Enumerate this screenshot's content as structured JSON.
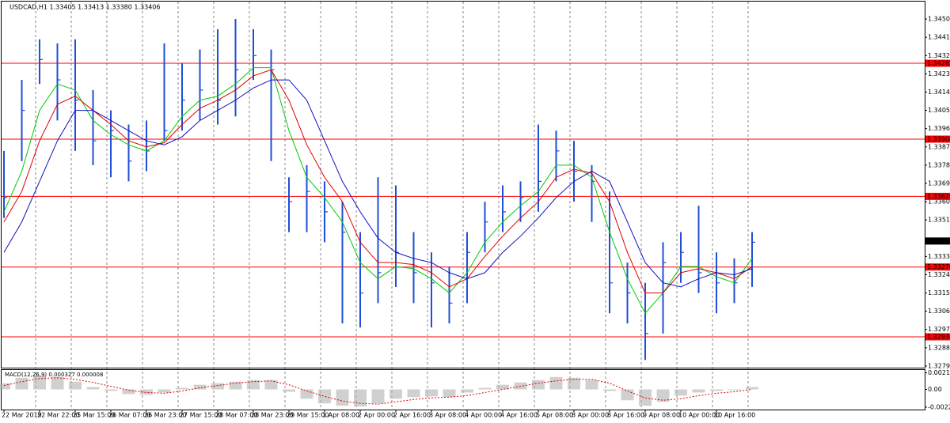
{
  "chart_data": {
    "type": "ohlc",
    "title": "USDCAD,H1  1.33405 1.33413 1.33380 1.33406",
    "categories": [
      "22 Mar 2019",
      null,
      "22 Mar 22:00",
      null,
      "25 Mar 15:00",
      null,
      "26 Mar 07:00",
      null,
      "26 Mar 23:00",
      null,
      "27 Mar 15:00",
      null,
      "28 Mar 07:00",
      null,
      "28 Mar 23:00",
      null,
      "29 Mar 15:00",
      null,
      "1 Apr 08:00",
      null,
      "2 Apr 00:00",
      null,
      "2 Apr 16:00",
      null,
      "3 Apr 08:00",
      null,
      "4 Apr 00:00",
      null,
      "4 Apr 16:00",
      null,
      "5 Apr 08:00",
      null,
      "8 Apr 00:00",
      null,
      "8 Apr 16:00",
      null,
      "9 Apr 08:00",
      null,
      "10 Apr 00:00",
      null,
      "10 Apr 16:00",
      null,
      null
    ],
    "high": [
      1.3385,
      1.342,
      1.344,
      1.3438,
      1.344,
      1.3415,
      1.3405,
      1.3398,
      1.34,
      1.3438,
      1.3428,
      1.3435,
      1.3445,
      1.345,
      1.3445,
      1.3435,
      1.3372,
      1.3378,
      1.337,
      1.336,
      1.3345,
      1.3372,
      1.3368,
      1.3345,
      1.3335,
      1.3328,
      1.3345,
      1.336,
      1.3368,
      1.337,
      1.3398,
      1.3395,
      1.339,
      1.3378,
      1.3365,
      1.333,
      1.332,
      1.334,
      1.3345,
      1.3358,
      1.3335,
      1.3332,
      1.3345
    ],
    "low": [
      1.3352,
      1.338,
      1.3418,
      1.34,
      1.3385,
      1.3378,
      1.3372,
      1.337,
      1.3375,
      1.339,
      1.3395,
      1.34,
      1.3398,
      1.3402,
      1.342,
      1.338,
      1.3345,
      1.3345,
      1.334,
      1.33,
      1.3298,
      1.331,
      1.3318,
      1.331,
      1.3298,
      1.33,
      1.331,
      1.3335,
      1.3345,
      1.335,
      1.3355,
      1.337,
      1.336,
      1.335,
      1.3305,
      1.33,
      1.3282,
      1.3295,
      1.332,
      1.3315,
      1.3305,
      1.331,
      1.3318
    ],
    "close": [
      1.3362,
      1.3405,
      1.343,
      1.342,
      1.341,
      1.339,
      1.3395,
      1.338,
      1.3385,
      1.3395,
      1.341,
      1.3415,
      1.341,
      1.3425,
      1.3432,
      1.3425,
      1.336,
      1.3365,
      1.3355,
      1.3345,
      1.3315,
      1.3325,
      1.3335,
      1.3325,
      1.332,
      1.331,
      1.3335,
      1.335,
      1.3355,
      1.3362,
      1.337,
      1.3385,
      1.3375,
      1.337,
      1.332,
      1.3315,
      1.3295,
      1.333,
      1.3335,
      1.3325,
      1.332,
      1.332,
      1.334
    ],
    "color": "#1f4fd6",
    "moving_averages": [
      {
        "color": "#00cc00",
        "values": [
          1.3355,
          1.3375,
          1.3405,
          1.3418,
          1.3415,
          1.34,
          1.3393,
          1.3388,
          1.3385,
          1.339,
          1.3402,
          1.341,
          1.3412,
          1.3418,
          1.3426,
          1.3426,
          1.3395,
          1.3372,
          1.3362,
          1.335,
          1.333,
          1.3322,
          1.3328,
          1.3327,
          1.3322,
          1.3315,
          1.3325,
          1.334,
          1.335,
          1.3358,
          1.3365,
          1.3378,
          1.3378,
          1.3372,
          1.3345,
          1.3322,
          1.3305,
          1.3315,
          1.3328,
          1.3328,
          1.3323,
          1.332,
          1.3332
        ]
      },
      {
        "color": "#e00000",
        "values": [
          1.335,
          1.3365,
          1.339,
          1.3408,
          1.3412,
          1.3405,
          1.3398,
          1.339,
          1.3387,
          1.3389,
          1.3398,
          1.3406,
          1.341,
          1.3415,
          1.3422,
          1.3425,
          1.341,
          1.3388,
          1.3372,
          1.336,
          1.334,
          1.333,
          1.333,
          1.3329,
          1.3325,
          1.3318,
          1.3322,
          1.3333,
          1.3343,
          1.3352,
          1.336,
          1.3372,
          1.3376,
          1.3374,
          1.336,
          1.3335,
          1.3315,
          1.3315,
          1.3325,
          1.3327,
          1.3325,
          1.3322,
          1.3328
        ]
      },
      {
        "color": "#1010c0",
        "values": [
          1.3335,
          1.335,
          1.337,
          1.339,
          1.3405,
          1.3405,
          1.34,
          1.3395,
          1.339,
          1.3388,
          1.3392,
          1.34,
          1.3405,
          1.341,
          1.3416,
          1.342,
          1.342,
          1.341,
          1.339,
          1.337,
          1.3355,
          1.3342,
          1.3335,
          1.3332,
          1.333,
          1.3325,
          1.3322,
          1.3325,
          1.3335,
          1.3343,
          1.3352,
          1.3362,
          1.337,
          1.3375,
          1.337,
          1.335,
          1.333,
          1.332,
          1.3318,
          1.3322,
          1.3325,
          1.3324,
          1.3327
        ]
      }
    ],
    "levels": [
      1.34282,
      1.33908,
      1.33626,
      1.33278,
      1.32934
    ],
    "level_color": "#ff0000",
    "current_price": 1.33406,
    "ylim": [
      1.32782,
      1.34586
    ],
    "yticks": [
      {
        "value": 1.345,
        "label": "1.34500"
      },
      {
        "value": 1.3441,
        "label": "1.34410"
      },
      {
        "value": 1.3432,
        "label": "1.34320"
      },
      {
        "value": 1.3423,
        "label": "1.34230"
      },
      {
        "value": 1.3414,
        "label": "1.34140"
      },
      {
        "value": 1.3405,
        "label": "1.34050"
      },
      {
        "value": 1.3396,
        "label": "1.33960"
      },
      {
        "value": 1.3387,
        "label": "1.33870"
      },
      {
        "value": 1.3378,
        "label": "1.33780"
      },
      {
        "value": 1.3369,
        "label": "1.33690"
      },
      {
        "value": 1.336,
        "label": "1.33600"
      },
      {
        "value": 1.3351,
        "label": "1.33510"
      },
      {
        "value": 1.3333,
        "label": "1.33330"
      },
      {
        "value": 1.3324,
        "label": "1.33240"
      },
      {
        "value": 1.3315,
        "label": "1.33150"
      },
      {
        "value": 1.3306,
        "label": "1.33060"
      },
      {
        "value": 1.3297,
        "label": "1.32970"
      },
      {
        "value": 1.3288,
        "label": "1.32880"
      },
      {
        "value": 1.3279,
        "label": "1.32790"
      }
    ],
    "grid": true,
    "macd": {
      "title": "MACD(12,26,9) 0.000327 0.000008",
      "histogram": [
        0.0008,
        0.0015,
        0.0018,
        0.0016,
        0.001,
        0.0003,
        -0.0002,
        -0.0006,
        -0.0007,
        -0.0004,
        0.0002,
        0.0006,
        0.0008,
        0.001,
        0.0012,
        0.0012,
        -0.0003,
        -0.0012,
        -0.0018,
        -0.0021,
        -0.0022,
        -0.0018,
        -0.0012,
        -0.001,
        -0.0009,
        -0.001,
        -0.0004,
        0.0002,
        0.0006,
        0.0009,
        0.0012,
        0.0016,
        0.0015,
        0.0012,
        -0.0002,
        -0.0014,
        -0.0021,
        -0.0016,
        -0.0008,
        -0.0004,
        -0.0002,
        -0.0001,
        0.0003
      ],
      "signal": [
        0.0005,
        0.001,
        0.0014,
        0.0015,
        0.0013,
        0.0009,
        0.0004,
        -0.0001,
        -0.0004,
        -0.0005,
        -0.0002,
        0.0002,
        0.0005,
        0.0008,
        0.001,
        0.0011,
        0.0006,
        -0.0002,
        -0.0009,
        -0.0015,
        -0.0018,
        -0.0019,
        -0.0016,
        -0.0013,
        -0.0011,
        -0.001,
        -0.0008,
        -0.0004,
        0.0,
        0.0004,
        0.0008,
        0.0011,
        0.0013,
        0.0013,
        0.0008,
        -0.0002,
        -0.0011,
        -0.0014,
        -0.0012,
        -0.0008,
        -0.0005,
        -0.0003,
        0.0
      ],
      "histogram_color": "#b0b0b0",
      "signal_color": "#e00000",
      "ylim": [
        -0.0026,
        0.0025
      ],
      "yticks": [
        0.002145,
        {
          "value": 0,
          "label": "0.00"
        },
        -0.002286
      ]
    }
  }
}
